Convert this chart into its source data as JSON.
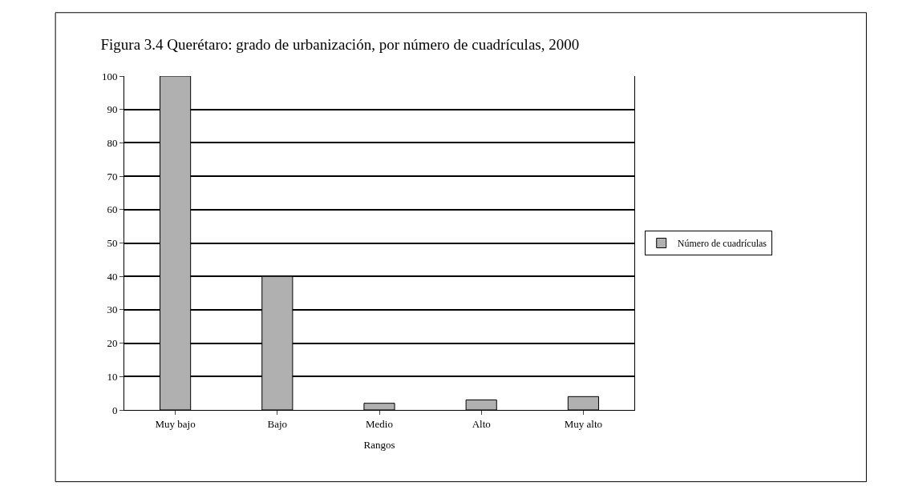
{
  "chart_data": {
    "type": "bar",
    "title": "Figura 3.4 Querétaro: grado de urbanización, por número de cuadrículas, 2000",
    "xlabel": "Rangos",
    "categories": [
      "Muy bajo",
      "Bajo",
      "Medio",
      "Alto",
      "Muy alto"
    ],
    "series": [
      {
        "name": "Número de cuadrículas",
        "color": "#b0b0b0",
        "values": [
          100,
          40,
          2,
          3,
          4
        ]
      }
    ],
    "ylim": [
      0,
      100
    ],
    "yticks": [
      0,
      10,
      20,
      30,
      40,
      50,
      60,
      70,
      80,
      90,
      100
    ],
    "grid": "y",
    "legend": "right"
  }
}
